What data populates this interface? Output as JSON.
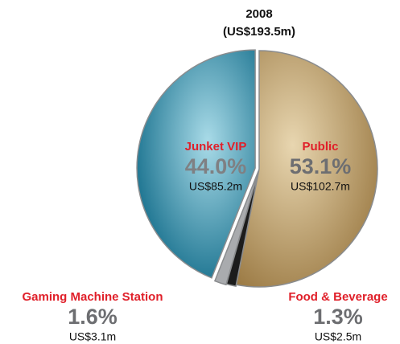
{
  "chart_data": {
    "type": "pie",
    "title": "2008",
    "subtitle": "(US$193.5m)",
    "categories": [
      "Public",
      "Food & Beverage",
      "Gaming Machine Station",
      "Junket VIP"
    ],
    "values": [
      53.1,
      1.3,
      1.6,
      44.0
    ],
    "value_labels": [
      "53.1%",
      "1.3%",
      "1.6%",
      "44.0%"
    ],
    "amount_labels": [
      "US$102.7m",
      "US$2.5m",
      "US$3.1m",
      "US$85.2m"
    ],
    "colors": [
      "#b99c66",
      "#1c1c1c",
      "#a9abae",
      "#2a87a6"
    ]
  }
}
